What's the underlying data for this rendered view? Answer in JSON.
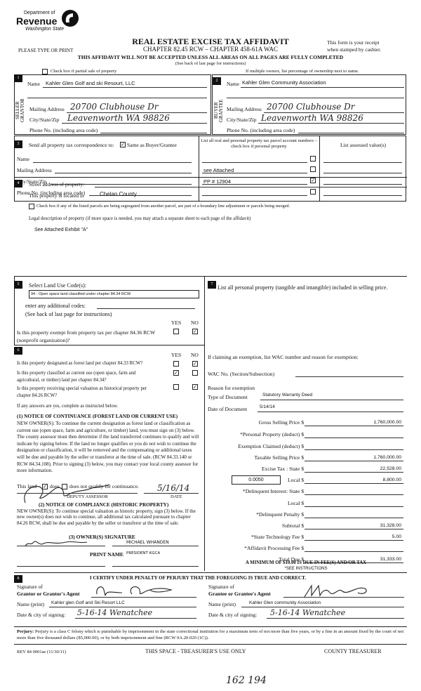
{
  "header": {
    "logo_line1": "Department of",
    "logo_line2": "Revenue",
    "logo_line3": "Washington State",
    "title": "REAL ESTATE EXCISE TAX AFFIDAVIT",
    "please": "PLEASE TYPE OR PRINT",
    "chapter": "CHAPTER 82.45 RCW – CHAPTER 458-61A WAC",
    "receipt1": "This form is your receipt",
    "receipt2": "when stamped by cashier.",
    "warning": "THIS AFFIDAVIT WILL NOT BE ACCEPTED UNLESS ALL AREAS ON ALL PAGES ARE FULLY COMPLETED",
    "see_back": "(See back of last page for instructions)",
    "partial_sale": "Check box if partial sale of property",
    "multiple_owners": "If multiple owners, list percentage of ownership next to name."
  },
  "seller": {
    "num": "1",
    "side_label": "SELLER GRANTOR",
    "name_label": "Name",
    "name": "Kahler Glen Golf and ski Resourt, LLC",
    "mail_label": "Mailing Address",
    "mail": "20700 Clubhouse Dr",
    "city_label": "City/State/Zip",
    "city": "Leavenworth WA 98826",
    "phone_label": "Phone No. (including area code)"
  },
  "buyer": {
    "num": "2",
    "side_label": "BUYER GRANTEE",
    "name_label": "Name",
    "name": "Kahler Glen Community Association",
    "mail_label": "Mailing Address",
    "mail": "20700 Clubhouse Dr",
    "city_label": "City/State/Zip",
    "city": "Leavenworth WA 98826",
    "phone_label": "Phone No. (including area code)"
  },
  "section3": {
    "num": "3",
    "send_label": "Send all property tax correspondence to:",
    "same_label": "Same as Buyer/Grantee",
    "same_checked": true,
    "name_label": "Name",
    "mail_label": "Mailing Address",
    "city_label": "City/State/Zip",
    "phone_label": "Phone No. (including area code)",
    "parcel_header": "List all real and personal property tax parcel account numbers – check box if personal property",
    "assessed_header": "List assessed value(s)",
    "parcels": [
      {
        "value": "",
        "checked": false
      },
      {
        "value": "see Attached",
        "checked": false
      },
      {
        "value": "PP # 12904",
        "checked": true
      },
      {
        "value": "",
        "checked": false
      }
    ]
  },
  "section4": {
    "num": "4",
    "street_label": "Street address of property:",
    "located_label": "This property is located in",
    "county": "Chelan County",
    "segregated_label": "Check box if any of the listed parcels are being segregated from another parcel, are part of a boundary line adjustment or parcels being merged.",
    "legal_label": "Legal description of property (if more space is needed, you may attach a separate sheet to each page of the affidavit)",
    "legal": "See Attached Exhibit \"A\""
  },
  "section5": {
    "num": "5",
    "land_use_label": "Select Land Use Code(s):",
    "land_use": "94 - Open space land classified under chapter 84.34 RCW",
    "additional_label": "enter any additional codes:",
    "see_back": "(See back of last page for instructions)",
    "yes": "YES",
    "no": "NO",
    "exempt_q": "Is this property exempt from property tax per chapter 84.36 RCW (nonprofit organization)?",
    "exempt_answer": "NO"
  },
  "section6": {
    "num": "6",
    "yes": "YES",
    "no": "NO",
    "questions": [
      {
        "q": "Is this property designated as forest land per chapter 84.33 RCW?",
        "answer": "NO"
      },
      {
        "q": "Is this property classified as current use (open space, farm and agricultural, or timber) land per chapter 84.34?",
        "answer": "YES"
      },
      {
        "q": "Is this property receiving special valuation as historical property per chapter 84.26 RCW?",
        "answer": "NO"
      }
    ],
    "if_yes": "If any answers are yes, complete as instructed below.",
    "notice1_title": "(1) NOTICE OF CONTINUANCE (FOREST LAND OR CURRENT USE)",
    "notice1_text": "NEW OWNER(S): To continue the current designation as forest land or classification as current use (open space, farm and agriculture, or timber) land, you must sign on (3) below. The county assessor must then determine if the land transferred continues to qualify and will indicate by signing below. If the land no longer qualifies or you do not wish to continue the designation or classification, it will be removed and the compensating or additional taxes will be due and payable by the seller or transferor at the time of sale. (RCW 84.33.140 or RCW 84.34.108). Prior to signing (3) below, you may contact your local county assessor for more information.",
    "this_land": "This land",
    "does": "does",
    "does_not": "does not qualify for continuance.",
    "qualifies": true,
    "assessor_label": "DEPUTY ASSESSOR",
    "date_label": "DATE",
    "assessor_date": "5/16/14",
    "notice2_title": "(2) NOTICE OF COMPLIANCE (HISTORIC PROPERTY)",
    "notice2_text": "NEW OWNER(S): To continue special valuation as historic property, sign (3) below. If the new owner(s) does not wish to continue, all additional tax calculated pursuant to chapter 84.26 RCW, shall be due and payable by the seller or transferor at the time of sale.",
    "owner_sig_title": "(3) OWNER(S) SIGNATURE",
    "owner_print": "MICHAEL WHANDEN",
    "print_name_label": "PRINT NAME",
    "print_name": "PRESIDENT KGCA"
  },
  "section7": {
    "num": "7",
    "personal_label": "List all personal property (tangible and intangible) included in selling price.",
    "exemption_label": "If claiming an exemption, list WAC number and reason for exemption:",
    "wac_label": "WAC No. (Section/Subsection)",
    "reason_label": "Reason for exemption",
    "doc_type_label": "Type of Document",
    "doc_type": "Statutory Warranty Deed",
    "doc_date_label": "Date of Document",
    "doc_date": "5/14/14",
    "local_rate": "0.0050",
    "fees": [
      {
        "label": "Gross Selling Price $",
        "value": "1,760,000.00"
      },
      {
        "label": "*Personal Property (deduct) $",
        "value": ""
      },
      {
        "label": "Exemption Claimed (deduct) $",
        "value": ""
      },
      {
        "label": "Taxable Selling Price $",
        "value": "1,760,000.00"
      },
      {
        "label": "Excise Tax : State $",
        "value": "22,528.00"
      },
      {
        "label": "Local $",
        "value": "8,800.00"
      },
      {
        "label": "*Delinquent Interest: State $",
        "value": ""
      },
      {
        "label": "Local $",
        "value": ""
      },
      {
        "label": "*Delinquent Penalty $",
        "value": ""
      },
      {
        "label": "Subtotal $",
        "value": "31,328.00"
      },
      {
        "label": "*State Technology Fee $",
        "value": "5.00"
      },
      {
        "label": "*Affidavit Processing Fee $",
        "value": ""
      },
      {
        "label": "Total Due $",
        "value": "31,333.00"
      }
    ],
    "minimum": "A MINIMUM OF $10.00 IS DUE IN FEE(S) AND/OR TAX",
    "see_instr": "*SEE INSTRUCTIONS"
  },
  "section8": {
    "num": "8",
    "certify": "I CERTIFY UNDER PENALTY OF PERJURY THAT THE FOREGOING IS TRUE AND CORRECT.",
    "sig_grantor_l1": "Signature of",
    "sig_grantor_l2": "Grantor or Grantor's Agent",
    "sig_grantee_l1": "Signature of",
    "sig_grantee_l2": "Grantee or Grantee's Agent",
    "name_print_label": "Name (print)",
    "grantor_name": "Kahler glen Golf and Ski Resort LLC",
    "grantee_name": "Kahler Glen community Association",
    "date_city_label": "Date & city of signing:",
    "grantor_date": "5-16-14 Wenatchee",
    "grantee_date": "5-16-14 Wenatchee"
  },
  "footer": {
    "perjury_bold": "Perjury:",
    "perjury": "Perjury is a class C felony which is punishable by imprisonment in the state correctional institution for a maximum term of not more than five years, or by a fine in an amount fixed by the court of not more than five thousand dollars ($5,000.00), or by both imprisonment and fine (RCW 9A.20.020 (1C)).",
    "rev": "REV 84 0001ae (11/30/11)",
    "treasurer_use": "THIS SPACE - TREASURER'S USE ONLY",
    "county_treasurer": "COUNTY TREASURER",
    "handwritten_number": "162 194"
  }
}
